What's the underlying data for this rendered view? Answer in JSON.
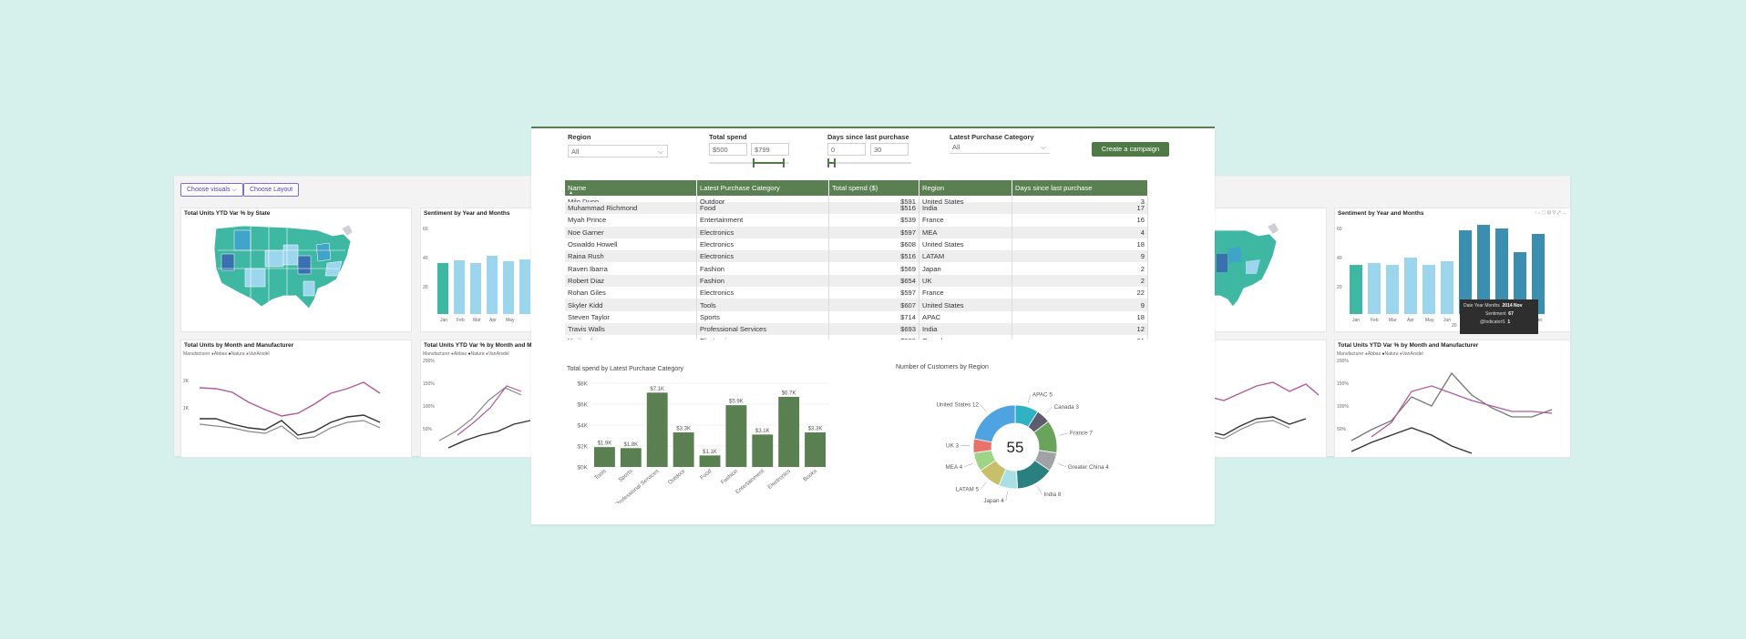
{
  "background_color": "#d6f1ec",
  "accent_color": "#5a7f50",
  "left_panel": {
    "choose_visuals": "Choose visuals",
    "choose_layout": "Choose Layout",
    "map_title": "Total Units YTD Var % by State",
    "sentiment_title": "Sentiment by Year and Months",
    "sentiment_y": [
      "60",
      "40",
      "20"
    ],
    "months": [
      "Jan",
      "Feb",
      "Mar",
      "Apr",
      "May"
    ],
    "units_title": "Total Units by Month and Manufacturer",
    "ytd_title": "Total Units YTD Var % by Month and M",
    "legend_label": "Manufacturer",
    "legend_items": [
      "Abbas",
      "Natura",
      "VanArsdel"
    ],
    "units_y": [
      "2K",
      "1K"
    ],
    "ytd_y": [
      "200%",
      "150%",
      "100%",
      "50%"
    ]
  },
  "right_panel": {
    "sentiment_title": "Sentiment by Year and Months",
    "sentiment_y": [
      "60",
      "40",
      "20"
    ],
    "months": [
      "Jan",
      "Feb",
      "Mar",
      "Apr",
      "May",
      "Jun",
      "Dec"
    ],
    "ytd_title": "Total Units YTD Var % by Month and Manufacturer",
    "legend_label": "Manufacturer",
    "legend_items": [
      "Abbas",
      "Natura",
      "VanArsdel"
    ],
    "ytd_y": [
      "200%",
      "150%",
      "100%",
      "50%"
    ],
    "tooltip": {
      "row1_label": "Date Year Months",
      "row1_value": "2014 Nov",
      "row2_label": "Sentiment",
      "row2_value": "67",
      "row3_label": "@IndicatorS",
      "row3_value": "1"
    },
    "axis_partial": "20"
  },
  "filters": {
    "region_label": "Region",
    "region_value": "All",
    "spend_label": "Total spend",
    "spend_min": "$500",
    "spend_max": "$799",
    "days_label": "Days since last purchase",
    "days_min": "0",
    "days_max": "30",
    "category_label": "Latest Purchase Category",
    "category_value": "All",
    "campaign_button": "Create a campaign"
  },
  "table": {
    "headers": [
      "Name",
      "Latest Purchase Category",
      "Total spend ($)",
      "Region",
      "Days since last purchase"
    ],
    "partial_row": [
      "Milo Dunn",
      "Outdoor",
      "$591",
      "United States",
      "3"
    ],
    "rows": [
      [
        "Muhammad Richmond",
        "Food",
        "$516",
        "India",
        "17"
      ],
      [
        "Myah Prince",
        "Entertainment",
        "$539",
        "France",
        "16"
      ],
      [
        "Noe Garner",
        "Electronics",
        "$597",
        "MEA",
        "4"
      ],
      [
        "Oswaldo Howell",
        "Electronics",
        "$608",
        "United States",
        "18"
      ],
      [
        "Raina Rush",
        "Electronics",
        "$516",
        "LATAM",
        "9"
      ],
      [
        "Raven Ibarra",
        "Fashion",
        "$569",
        "Japan",
        "2"
      ],
      [
        "Robert Diaz",
        "Fashion",
        "$654",
        "UK",
        "2"
      ],
      [
        "Rohan Giles",
        "Electronics",
        "$597",
        "France",
        "22"
      ],
      [
        "Skyler Kidd",
        "Tools",
        "$607",
        "United States",
        "9"
      ],
      [
        "Steven Taylor",
        "Sports",
        "$714",
        "APAC",
        "18"
      ],
      [
        "Travis Walls",
        "Professional Services",
        "$693",
        "India",
        "12"
      ],
      [
        "Yaritza Ingram",
        "Electronics",
        "$539",
        "Canada",
        "21"
      ]
    ]
  },
  "chart_data": [
    {
      "type": "bar",
      "title": "Total spend by Latest Purchase Category",
      "categories": [
        "Tools",
        "Sports",
        "Professional Services",
        "Outdoor",
        "Food",
        "Fashion",
        "Entertainment",
        "Electronics",
        "Books"
      ],
      "values": [
        1900,
        1800,
        7100,
        3300,
        1100,
        5900,
        3100,
        6700,
        3300
      ],
      "data_labels": [
        "$1.9K",
        "$1.8K",
        "$7.1K",
        "$3.3K",
        "$1.1K",
        "$5.9K",
        "$3.1K",
        "$6.7K",
        "$3.3K"
      ],
      "y_ticks": [
        "$8K",
        "$6K",
        "$4K",
        "$2K",
        "$0K"
      ],
      "ylim": [
        0,
        8000
      ],
      "color": "#5a7f50"
    },
    {
      "type": "pie",
      "title": "Number of Customers by Region",
      "center_label": "55",
      "slices": [
        {
          "label": "APAC 5",
          "value": 5,
          "color": "#2fb3c4"
        },
        {
          "label": "Canada 3",
          "value": 3,
          "color": "#5c5c6e"
        },
        {
          "label": "France 7",
          "value": 7,
          "color": "#6aa35c"
        },
        {
          "label": "Greater China 4",
          "value": 4,
          "color": "#9fa3a6"
        },
        {
          "label": "India 8",
          "value": 8,
          "color": "#2a7f7f"
        },
        {
          "label": "Japan 4",
          "value": 4,
          "color": "#a8e0e6"
        },
        {
          "label": "LATAM 5",
          "value": 5,
          "color": "#c7bf6a"
        },
        {
          "label": "MEA 4",
          "value": 4,
          "color": "#9ed486"
        },
        {
          "label": "UK 3",
          "value": 3,
          "color": "#e9726a"
        },
        {
          "label": "United States 12",
          "value": 12,
          "color": "#4ea3e0"
        }
      ]
    }
  ]
}
